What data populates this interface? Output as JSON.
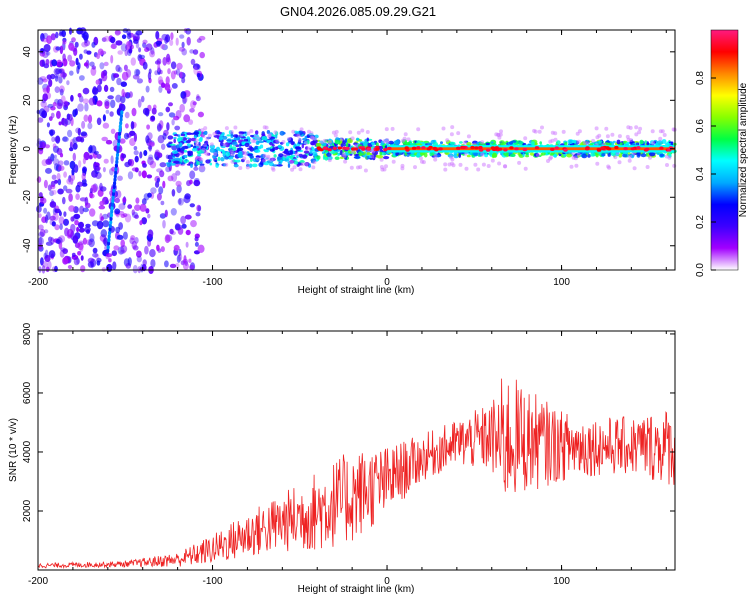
{
  "title": "GN04.2026.085.09.29.G21",
  "chart_data": [
    {
      "type": "heatmap",
      "xlabel": "Height of straight line (km)",
      "ylabel": "Frequency (Hz)",
      "xlim": [
        -200,
        165
      ],
      "ylim": [
        -50,
        49
      ],
      "xticks": [
        "-200",
        "-100",
        "0",
        "100"
      ],
      "yticks": [
        "-40",
        "-20",
        "0",
        "20",
        "40"
      ],
      "colorbar": {
        "label": "Normalized spectral amplitude",
        "range": [
          0,
          1
        ],
        "ticks": [
          "0.0",
          "0.2",
          "0.4",
          "0.6",
          "0.8"
        ],
        "colors": [
          "#ffffff",
          "#a200ff",
          "#3c00ff",
          "#0000ff",
          "#00aaff",
          "#00ffff",
          "#00ff44",
          "#88ff00",
          "#ffff00",
          "#ff8800",
          "#ff0000",
          "#ff1a80"
        ]
      },
      "description_points": {
        "noise_region_x": [
          -200,
          -110
        ],
        "signal_line_freq": 0,
        "strong_band_x": [
          0,
          165
        ],
        "diagonal_streak": {
          "x": [
            -160,
            -152
          ],
          "freq": [
            -42,
            15
          ]
        }
      }
    },
    {
      "type": "line",
      "xlabel": "Height of straight line (km)",
      "ylabel": "SNR (10 * v/v)",
      "xlim": [
        -200,
        165
      ],
      "ylim": [
        0,
        8100
      ],
      "xticks": [
        "-200",
        "-100",
        "0",
        "100"
      ],
      "yticks": [
        "2000",
        "4000",
        "6000",
        "8000"
      ],
      "color": "#ee2222",
      "envelope": {
        "x": [
          -200,
          -150,
          -120,
          -100,
          -80,
          -60,
          -40,
          -20,
          0,
          20,
          40,
          60,
          65,
          70,
          80,
          90,
          100,
          120,
          140,
          165
        ],
        "mean": [
          150,
          200,
          350,
          700,
          1200,
          1600,
          2000,
          2500,
          3000,
          3800,
          4300,
          4500,
          4300,
          4500,
          4400,
          4300,
          4200,
          4200,
          4200,
          4200
        ],
        "spread": [
          80,
          100,
          250,
          500,
          800,
          1000,
          1400,
          1600,
          1200,
          800,
          800,
          1200,
          2200,
          2200,
          1800,
          1500,
          1200,
          1000,
          1000,
          1400
        ]
      }
    }
  ]
}
